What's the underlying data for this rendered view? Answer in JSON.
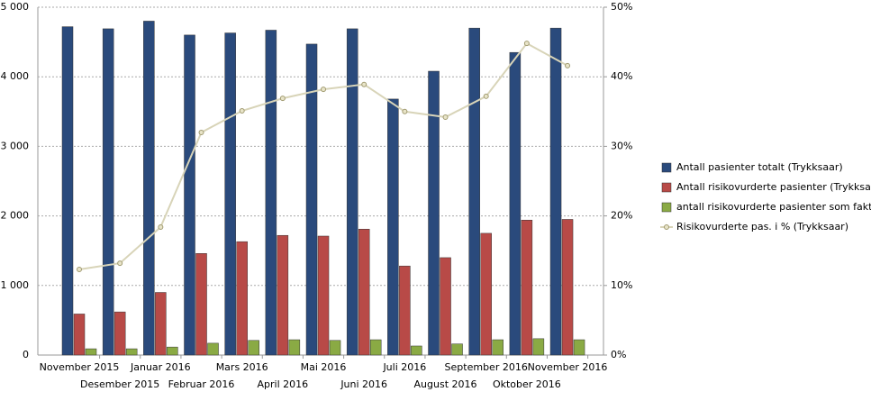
{
  "chart_data": {
    "type": "bar",
    "categories": [
      "November 2015",
      "Desember 2015",
      "Januar 2016",
      "Februar 2016",
      "Mars 2016",
      "April 2016",
      "Mai 2016",
      "Juni 2016",
      "Juli 2016",
      "August 2016",
      "September 2016",
      "Oktober 2016",
      "November 2016"
    ],
    "series": [
      {
        "name": "Antall pasienter totalt (Trykksaar)",
        "color": "#2a4a7c",
        "values": [
          4720,
          4690,
          4800,
          4600,
          4630,
          4670,
          4470,
          4690,
          3680,
          4080,
          4700,
          4350,
          4700
        ]
      },
      {
        "name": "Antall risikovurderte pasienter (Trykksa…",
        "color": "#b84a47",
        "values": [
          590,
          620,
          900,
          1460,
          1630,
          1720,
          1710,
          1810,
          1280,
          1400,
          1750,
          1940,
          1950
        ]
      },
      {
        "name": "antall  risikovurderte pasienter som fakt…",
        "color": "#8aaa44",
        "values": [
          90,
          90,
          115,
          170,
          210,
          220,
          210,
          220,
          130,
          160,
          220,
          235,
          220
        ]
      },
      {
        "name": "Risikovurderte pas. i % (Trykksaar)",
        "color": "#d8d4b8",
        "type": "line",
        "axis": "y2",
        "values": [
          12.3,
          13.2,
          18.4,
          32.0,
          35.1,
          36.9,
          38.2,
          38.9,
          35.0,
          34.2,
          37.2,
          44.8,
          41.6
        ]
      }
    ],
    "ylim": [
      0,
      5000
    ],
    "yticks": [
      0,
      {
        "value": 1000,
        "label": "1 000"
      },
      {
        "value": 2000,
        "label": "2 000"
      },
      {
        "value": 3000,
        "label": "3 000"
      },
      {
        "value": 4000,
        "label": "4 000"
      },
      {
        "value": 5000,
        "label": "5 000"
      }
    ],
    "y2lim": [
      0,
      50
    ],
    "y2ticks": [
      {
        "value": 0,
        "label": "0%"
      },
      {
        "value": 10,
        "label": "10%"
      },
      {
        "value": 20,
        "label": "20%"
      },
      {
        "value": 30,
        "label": "30%"
      },
      {
        "value": 40,
        "label": "40%"
      },
      {
        "value": 50,
        "label": "50%"
      }
    ],
    "grid": true,
    "legend": "right"
  }
}
